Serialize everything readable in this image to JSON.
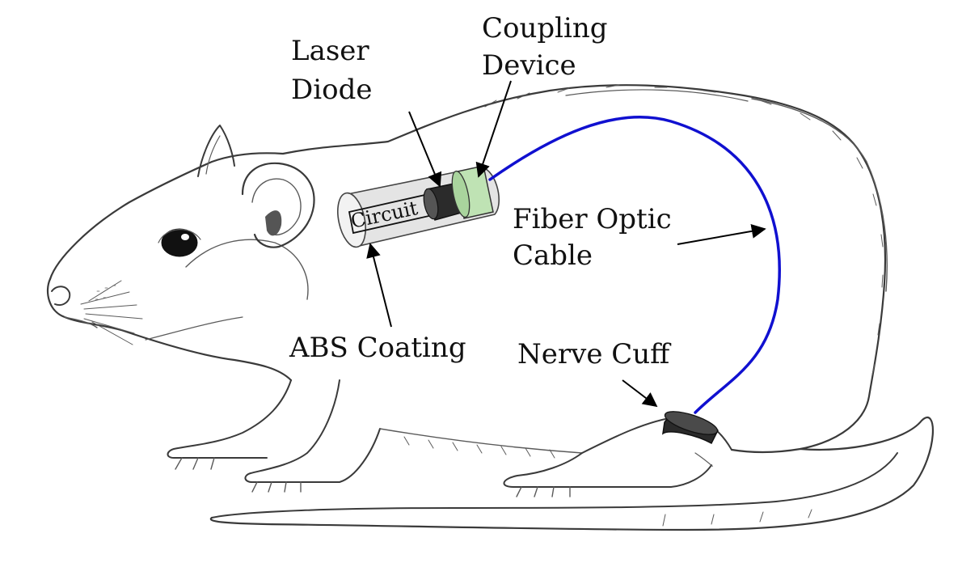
{
  "labels": {
    "laser_diode_line1": "Laser",
    "laser_diode_line2": "Diode",
    "coupling_line1": "Coupling",
    "coupling_line2": "Device",
    "fiber_line1": "Fiber Optic",
    "fiber_line2": "Cable",
    "abs_coating": "ABS Coating",
    "nerve_cuff": "Nerve Cuff",
    "circuit": "Circuit"
  },
  "colors": {
    "fiber": "#1010d0",
    "coupling_fill": "#bfe3b4",
    "coating_fill": "#e4e4e4",
    "laser_fill": "#2b2b2b",
    "cuff_fill": "#2a2a2a"
  }
}
